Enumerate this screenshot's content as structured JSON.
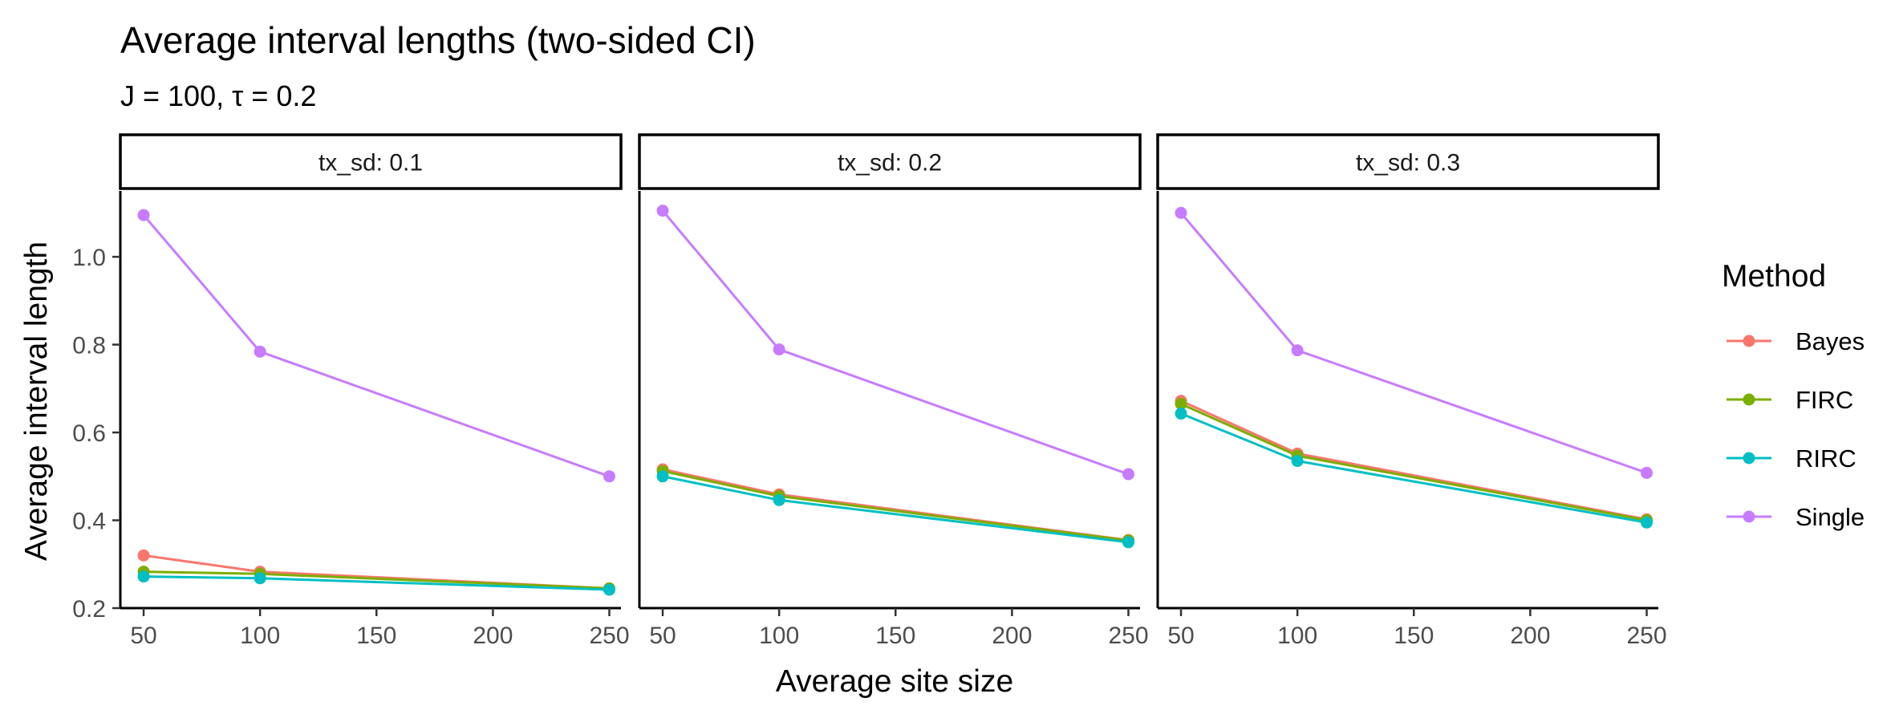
{
  "chart_data": {
    "type": "line",
    "title": "Average interval lengths (two-sided CI)",
    "subtitle": "J = 100, τ = 0.2",
    "xlabel": "Average site size",
    "ylabel": "Average interval length",
    "xlim": [
      40,
      255
    ],
    "ylim": [
      0.2,
      1.15
    ],
    "x_ticks": [
      50,
      100,
      150,
      200,
      250
    ],
    "y_ticks": [
      0.2,
      0.4,
      0.6,
      0.8,
      1.0
    ],
    "y_tick_labels": [
      "0.2",
      "0.4",
      "0.6",
      "0.8",
      "1.0"
    ],
    "grid": false,
    "legend": {
      "title": "Method",
      "position": "right",
      "entries": [
        "Bayes",
        "FIRC",
        "RIRC",
        "Single"
      ]
    },
    "colors": {
      "Bayes": "#F8766D",
      "FIRC": "#7CAE00",
      "RIRC": "#00BFC4",
      "Single": "#C77CFF"
    },
    "facets": [
      {
        "label": "tx_sd: 0.1",
        "x": [
          50,
          100,
          250
        ],
        "series": [
          {
            "name": "Bayes",
            "values": [
              0.32,
              0.283,
              0.245
            ]
          },
          {
            "name": "FIRC",
            "values": [
              0.283,
              0.278,
              0.245
            ]
          },
          {
            "name": "RIRC",
            "values": [
              0.272,
              0.268,
              0.242
            ]
          },
          {
            "name": "Single",
            "values": [
              1.095,
              0.784,
              0.5
            ]
          }
        ]
      },
      {
        "label": "tx_sd: 0.2",
        "x": [
          50,
          100,
          250
        ],
        "series": [
          {
            "name": "Bayes",
            "values": [
              0.516,
              0.459,
              0.355
            ]
          },
          {
            "name": "FIRC",
            "values": [
              0.512,
              0.455,
              0.354
            ]
          },
          {
            "name": "RIRC",
            "values": [
              0.5,
              0.446,
              0.35
            ]
          },
          {
            "name": "Single",
            "values": [
              1.105,
              0.789,
              0.505
            ]
          }
        ]
      },
      {
        "label": "tx_sd: 0.3",
        "x": [
          50,
          100,
          250
        ],
        "series": [
          {
            "name": "Bayes",
            "values": [
              0.672,
              0.552,
              0.402
            ]
          },
          {
            "name": "FIRC",
            "values": [
              0.665,
              0.547,
              0.4
            ]
          },
          {
            "name": "RIRC",
            "values": [
              0.643,
              0.535,
              0.395
            ]
          },
          {
            "name": "Single",
            "values": [
              1.1,
              0.787,
              0.508
            ]
          }
        ]
      }
    ]
  }
}
